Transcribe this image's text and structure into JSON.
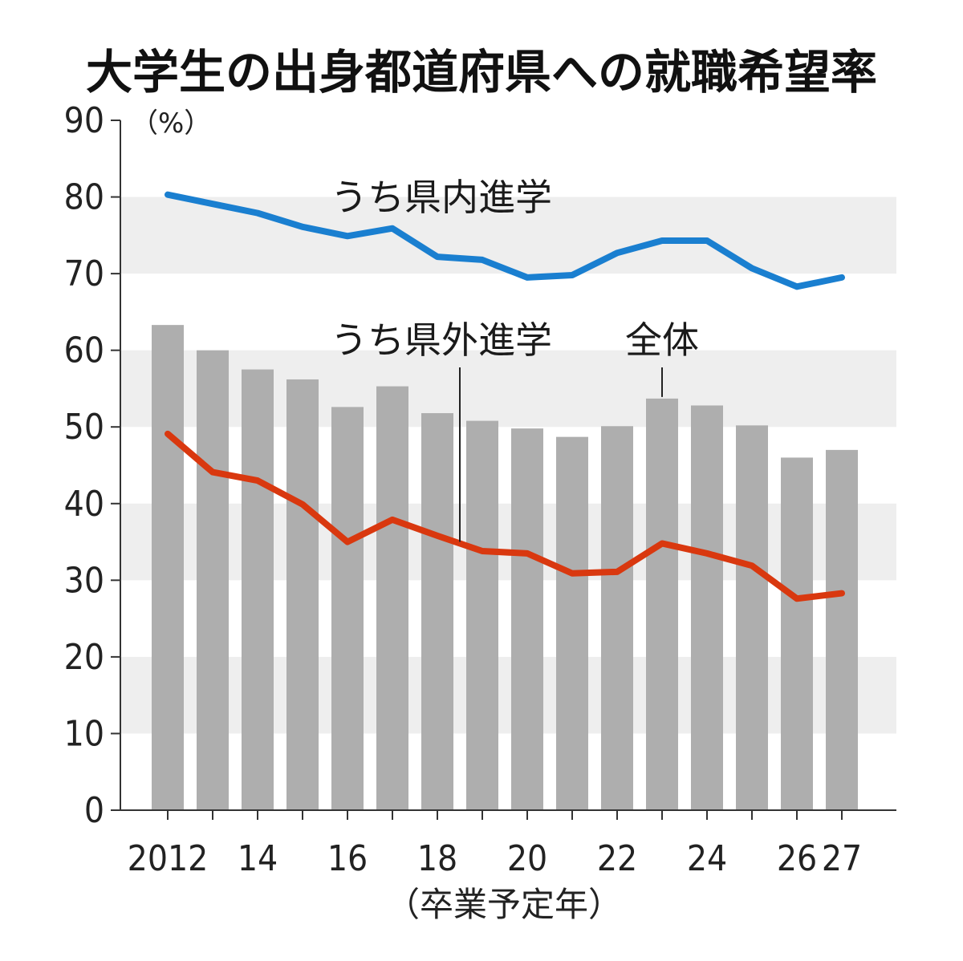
{
  "chart_data": {
    "type": "bar",
    "title": "大学生の出身都道府県への就職希望率",
    "ylabel": "（%）",
    "xlabel": "（卒業予定年）",
    "ylim": [
      0,
      90
    ],
    "yticks": [
      0,
      10,
      20,
      30,
      40,
      50,
      60,
      70,
      80,
      90
    ],
    "grid": "alternating horizontal bands",
    "x": [
      2012,
      2013,
      2014,
      2015,
      2016,
      2017,
      2018,
      2019,
      2020,
      2021,
      2022,
      2023,
      2024,
      2025,
      2026,
      2027
    ],
    "xtick_labels": [
      "2012",
      "",
      "14",
      "",
      "16",
      "",
      "18",
      "",
      "20",
      "",
      "22",
      "",
      "24",
      "",
      "26",
      "27"
    ],
    "series": [
      {
        "name": "全体",
        "type": "bar",
        "color": "#aeaeae",
        "values": [
          63.3,
          60.0,
          57.5,
          56.2,
          52.6,
          55.3,
          51.8,
          50.8,
          49.8,
          48.7,
          50.1,
          53.7,
          52.8,
          50.2,
          46.0,
          47.0
        ]
      },
      {
        "name": "うち県内進学",
        "type": "line",
        "color": "#1a7fd0",
        "values": [
          80.3,
          79.1,
          77.9,
          76.1,
          74.9,
          75.9,
          72.2,
          71.8,
          69.5,
          69.8,
          72.7,
          74.3,
          74.3,
          70.7,
          68.3,
          69.5
        ]
      },
      {
        "name": "うち県外進学",
        "type": "line",
        "color": "#d9380f",
        "values": [
          49.1,
          44.1,
          43.0,
          39.9,
          35.0,
          37.9,
          35.8,
          33.8,
          33.5,
          30.9,
          31.1,
          34.8,
          33.5,
          31.9,
          27.6,
          28.3
        ]
      }
    ]
  }
}
